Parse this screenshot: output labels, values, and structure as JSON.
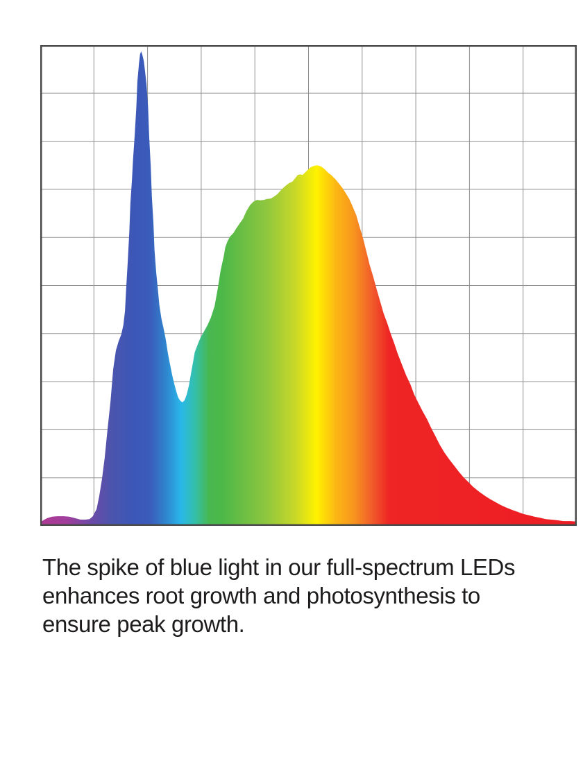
{
  "caption": {
    "lines": [
      "The spike of blue light in our full-spectrum LEDs",
      "enhances root growth and photosynthesis to",
      "ensure peak growth."
    ],
    "text_color": "#1d1b1b"
  },
  "chart_data": {
    "type": "area",
    "title": "",
    "xlabel": "",
    "ylabel": "",
    "axis_tick_labels_visible": false,
    "legend": "none",
    "background": "#ffffff",
    "grid": {
      "visible": true,
      "columns": 10,
      "rows": 10,
      "line_color": "#8f8f8f",
      "line_width": 1,
      "border_color": "#4a4a4a",
      "border_width": 2.5
    },
    "x_range": [
      0,
      1
    ],
    "y_range": [
      0,
      1
    ],
    "annotations": {
      "narrow_blue_peak": {
        "x": 0.188,
        "intensity": 0.99
      },
      "valley": {
        "x": 0.265,
        "intensity": 0.26
      },
      "broad_yellow_peak": {
        "x": 0.517,
        "intensity": 0.75
      }
    },
    "gradient_stops": [
      {
        "offset": 0.0,
        "color": "#ae3a93"
      },
      {
        "offset": 0.05,
        "color": "#a03e9c"
      },
      {
        "offset": 0.095,
        "color": "#6b4aa6"
      },
      {
        "offset": 0.135,
        "color": "#4a55ae"
      },
      {
        "offset": 0.175,
        "color": "#3c57b8"
      },
      {
        "offset": 0.205,
        "color": "#3a5cba"
      },
      {
        "offset": 0.235,
        "color": "#2f86cf"
      },
      {
        "offset": 0.262,
        "color": "#29b7ea"
      },
      {
        "offset": 0.287,
        "color": "#33bfae"
      },
      {
        "offset": 0.315,
        "color": "#47b850"
      },
      {
        "offset": 0.34,
        "color": "#4db848"
      },
      {
        "offset": 0.42,
        "color": "#8dc63f"
      },
      {
        "offset": 0.475,
        "color": "#c8d828"
      },
      {
        "offset": 0.515,
        "color": "#fff200"
      },
      {
        "offset": 0.552,
        "color": "#fbb615"
      },
      {
        "offset": 0.585,
        "color": "#f7941e"
      },
      {
        "offset": 0.62,
        "color": "#f1592b"
      },
      {
        "offset": 0.65,
        "color": "#ee2524"
      },
      {
        "offset": 1.0,
        "color": "#ed1c24"
      }
    ],
    "series": [
      {
        "name": "spectral-power-distribution",
        "points": [
          [
            0.0,
            0.007
          ],
          [
            0.006,
            0.012
          ],
          [
            0.013,
            0.016
          ],
          [
            0.022,
            0.019
          ],
          [
            0.032,
            0.02
          ],
          [
            0.044,
            0.02
          ],
          [
            0.054,
            0.019
          ],
          [
            0.065,
            0.016
          ],
          [
            0.075,
            0.013
          ],
          [
            0.084,
            0.013
          ],
          [
            0.092,
            0.014
          ],
          [
            0.098,
            0.02
          ],
          [
            0.105,
            0.035
          ],
          [
            0.11,
            0.062
          ],
          [
            0.115,
            0.097
          ],
          [
            0.12,
            0.141
          ],
          [
            0.125,
            0.196
          ],
          [
            0.131,
            0.26
          ],
          [
            0.136,
            0.326
          ],
          [
            0.141,
            0.365
          ],
          [
            0.146,
            0.384
          ],
          [
            0.151,
            0.398
          ],
          [
            0.155,
            0.418
          ],
          [
            0.158,
            0.447
          ],
          [
            0.16,
            0.491
          ],
          [
            0.163,
            0.548
          ],
          [
            0.166,
            0.61
          ],
          [
            0.168,
            0.672
          ],
          [
            0.171,
            0.721
          ],
          [
            0.173,
            0.762
          ],
          [
            0.176,
            0.811
          ],
          [
            0.179,
            0.87
          ],
          [
            0.181,
            0.923
          ],
          [
            0.184,
            0.961
          ],
          [
            0.186,
            0.981
          ],
          [
            0.188,
            0.987
          ],
          [
            0.19,
            0.981
          ],
          [
            0.193,
            0.967
          ],
          [
            0.195,
            0.949
          ],
          [
            0.198,
            0.918
          ],
          [
            0.201,
            0.87
          ],
          [
            0.203,
            0.811
          ],
          [
            0.206,
            0.747
          ],
          [
            0.208,
            0.685
          ],
          [
            0.211,
            0.629
          ],
          [
            0.213,
            0.574
          ],
          [
            0.216,
            0.528
          ],
          [
            0.219,
            0.495
          ],
          [
            0.222,
            0.459
          ],
          [
            0.226,
            0.43
          ],
          [
            0.23,
            0.41
          ],
          [
            0.234,
            0.387
          ],
          [
            0.238,
            0.358
          ],
          [
            0.242,
            0.335
          ],
          [
            0.246,
            0.313
          ],
          [
            0.25,
            0.294
          ],
          [
            0.254,
            0.278
          ],
          [
            0.257,
            0.267
          ],
          [
            0.261,
            0.26
          ],
          [
            0.265,
            0.257
          ],
          [
            0.269,
            0.261
          ],
          [
            0.273,
            0.273
          ],
          [
            0.277,
            0.291
          ],
          [
            0.281,
            0.317
          ],
          [
            0.285,
            0.342
          ],
          [
            0.288,
            0.361
          ],
          [
            0.294,
            0.379
          ],
          [
            0.299,
            0.392
          ],
          [
            0.305,
            0.404
          ],
          [
            0.312,
            0.418
          ],
          [
            0.318,
            0.433
          ],
          [
            0.325,
            0.457
          ],
          [
            0.331,
            0.495
          ],
          [
            0.336,
            0.53
          ],
          [
            0.342,
            0.561
          ],
          [
            0.345,
            0.58
          ],
          [
            0.349,
            0.592
          ],
          [
            0.354,
            0.602
          ],
          [
            0.36,
            0.609
          ],
          [
            0.365,
            0.618
          ],
          [
            0.371,
            0.628
          ],
          [
            0.378,
            0.639
          ],
          [
            0.384,
            0.654
          ],
          [
            0.391,
            0.667
          ],
          [
            0.397,
            0.674
          ],
          [
            0.404,
            0.678
          ],
          [
            0.41,
            0.677
          ],
          [
            0.417,
            0.678
          ],
          [
            0.423,
            0.68
          ],
          [
            0.43,
            0.681
          ],
          [
            0.436,
            0.685
          ],
          [
            0.442,
            0.69
          ],
          [
            0.45,
            0.7
          ],
          [
            0.458,
            0.708
          ],
          [
            0.464,
            0.713
          ],
          [
            0.47,
            0.716
          ],
          [
            0.475,
            0.723
          ],
          [
            0.48,
            0.73
          ],
          [
            0.485,
            0.731
          ],
          [
            0.489,
            0.73
          ],
          [
            0.493,
            0.734
          ],
          [
            0.498,
            0.74
          ],
          [
            0.504,
            0.746
          ],
          [
            0.511,
            0.749
          ],
          [
            0.517,
            0.75
          ],
          [
            0.524,
            0.747
          ],
          [
            0.53,
            0.742
          ],
          [
            0.537,
            0.734
          ],
          [
            0.543,
            0.729
          ],
          [
            0.55,
            0.721
          ],
          [
            0.556,
            0.713
          ],
          [
            0.563,
            0.703
          ],
          [
            0.569,
            0.693
          ],
          [
            0.576,
            0.68
          ],
          [
            0.582,
            0.665
          ],
          [
            0.589,
            0.646
          ],
          [
            0.595,
            0.623
          ],
          [
            0.602,
            0.597
          ],
          [
            0.608,
            0.57
          ],
          [
            0.614,
            0.543
          ],
          [
            0.621,
            0.517
          ],
          [
            0.627,
            0.492
          ],
          [
            0.634,
            0.465
          ],
          [
            0.64,
            0.442
          ],
          [
            0.647,
            0.421
          ],
          [
            0.653,
            0.4
          ],
          [
            0.66,
            0.379
          ],
          [
            0.666,
            0.359
          ],
          [
            0.674,
            0.336
          ],
          [
            0.682,
            0.313
          ],
          [
            0.69,
            0.294
          ],
          [
            0.697,
            0.273
          ],
          [
            0.705,
            0.255
          ],
          [
            0.713,
            0.238
          ],
          [
            0.721,
            0.222
          ],
          [
            0.728,
            0.205
          ],
          [
            0.736,
            0.188
          ],
          [
            0.744,
            0.17
          ],
          [
            0.753,
            0.153
          ],
          [
            0.762,
            0.139
          ],
          [
            0.771,
            0.126
          ],
          [
            0.78,
            0.113
          ],
          [
            0.789,
            0.101
          ],
          [
            0.798,
            0.091
          ],
          [
            0.807,
            0.081
          ],
          [
            0.818,
            0.071
          ],
          [
            0.828,
            0.063
          ],
          [
            0.838,
            0.056
          ],
          [
            0.849,
            0.049
          ],
          [
            0.859,
            0.043
          ],
          [
            0.869,
            0.038
          ],
          [
            0.88,
            0.033
          ],
          [
            0.89,
            0.029
          ],
          [
            0.9,
            0.025
          ],
          [
            0.911,
            0.022
          ],
          [
            0.921,
            0.019
          ],
          [
            0.931,
            0.017
          ],
          [
            0.942,
            0.014
          ],
          [
            0.952,
            0.013
          ],
          [
            0.962,
            0.012
          ],
          [
            0.975,
            0.01
          ],
          [
            0.988,
            0.01
          ],
          [
            1.0,
            0.009
          ]
        ]
      }
    ]
  }
}
